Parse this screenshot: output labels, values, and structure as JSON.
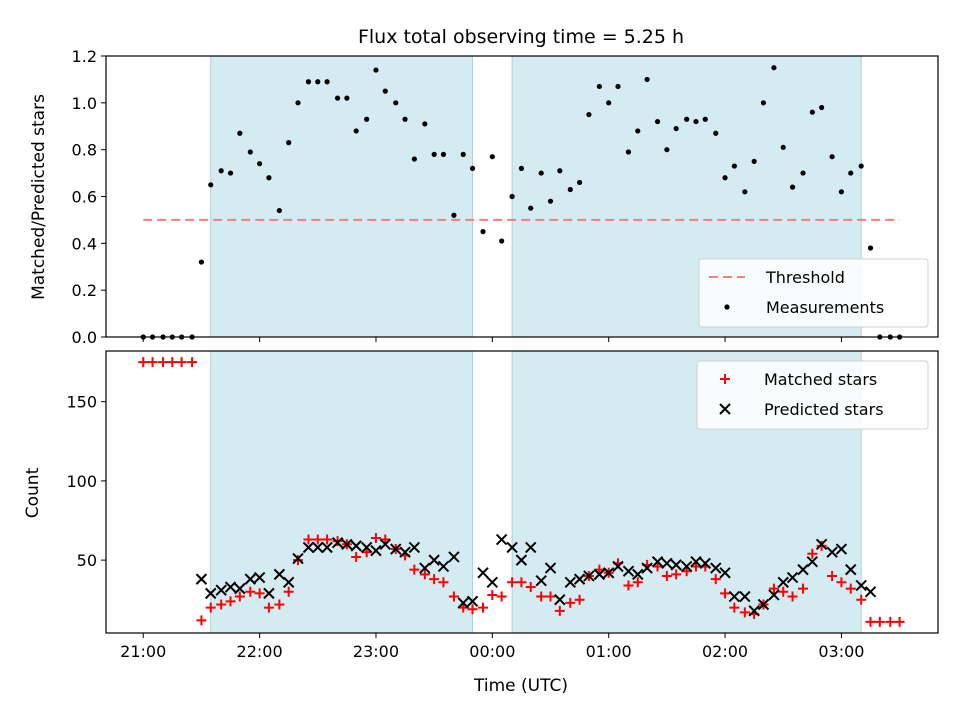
{
  "chart_data": [
    {
      "type": "scatter",
      "title": "Flux total observing time = 5.25 h",
      "xlabel": "",
      "ylabel": "Matched/Predicted stars",
      "xlim": [
        -0.32,
        6.83
      ],
      "ylim": [
        0.0,
        1.2
      ],
      "x_ticks": [
        "21:00",
        "22:00",
        "23:00",
        "00:00",
        "01:00",
        "02:00",
        "03:00"
      ],
      "y_ticks": [
        "0.0",
        "0.2",
        "0.4",
        "0.6",
        "0.8",
        "1.0",
        "1.2"
      ],
      "shaded_spans_hours_from_21": [
        [
          0.58,
          2.83
        ],
        [
          3.17,
          6.17
        ]
      ],
      "threshold": {
        "name": "Threshold",
        "value": 0.5,
        "x_range": [
          0.0,
          6.5
        ],
        "color": "#f08080"
      },
      "series": [
        {
          "name": "Measurements",
          "color": "#000000",
          "points": [
            [
              0.0,
              0.0
            ],
            [
              0.08,
              0.0
            ],
            [
              0.17,
              0.0
            ],
            [
              0.25,
              0.0
            ],
            [
              0.33,
              0.0
            ],
            [
              0.42,
              0.0
            ],
            [
              0.5,
              0.32
            ],
            [
              0.58,
              0.65
            ],
            [
              0.67,
              0.71
            ],
            [
              0.75,
              0.7
            ],
            [
              0.83,
              0.87
            ],
            [
              0.92,
              0.79
            ],
            [
              1.0,
              0.74
            ],
            [
              1.08,
              0.68
            ],
            [
              1.17,
              0.54
            ],
            [
              1.25,
              0.83
            ],
            [
              1.33,
              1.0
            ],
            [
              1.42,
              1.09
            ],
            [
              1.5,
              1.09
            ],
            [
              1.58,
              1.09
            ],
            [
              1.67,
              1.02
            ],
            [
              1.75,
              1.02
            ],
            [
              1.83,
              0.88
            ],
            [
              1.92,
              0.93
            ],
            [
              2.0,
              1.14
            ],
            [
              2.08,
              1.05
            ],
            [
              2.17,
              1.0
            ],
            [
              2.25,
              0.93
            ],
            [
              2.33,
              0.76
            ],
            [
              2.42,
              0.91
            ],
            [
              2.5,
              0.78
            ],
            [
              2.58,
              0.78
            ],
            [
              2.67,
              0.52
            ],
            [
              2.75,
              0.78
            ],
            [
              2.83,
              0.72
            ],
            [
              2.92,
              0.45
            ],
            [
              3.0,
              0.77
            ],
            [
              3.08,
              0.41
            ],
            [
              3.17,
              0.6
            ],
            [
              3.25,
              0.72
            ],
            [
              3.33,
              0.55
            ],
            [
              3.42,
              0.7
            ],
            [
              3.5,
              0.58
            ],
            [
              3.58,
              0.71
            ],
            [
              3.67,
              0.63
            ],
            [
              3.75,
              0.66
            ],
            [
              3.83,
              0.95
            ],
            [
              3.92,
              1.07
            ],
            [
              4.0,
              1.0
            ],
            [
              4.08,
              1.07
            ],
            [
              4.17,
              0.79
            ],
            [
              4.25,
              0.88
            ],
            [
              4.33,
              1.1
            ],
            [
              4.42,
              0.92
            ],
            [
              4.5,
              0.8
            ],
            [
              4.58,
              0.89
            ],
            [
              4.67,
              0.93
            ],
            [
              4.75,
              0.92
            ],
            [
              4.83,
              0.93
            ],
            [
              4.92,
              0.87
            ],
            [
              5.0,
              0.68
            ],
            [
              5.08,
              0.73
            ],
            [
              5.17,
              0.62
            ],
            [
              5.25,
              0.75
            ],
            [
              5.33,
              1.0
            ],
            [
              5.42,
              1.15
            ],
            [
              5.5,
              0.81
            ],
            [
              5.58,
              0.64
            ],
            [
              5.67,
              0.7
            ],
            [
              5.75,
              0.96
            ],
            [
              5.83,
              0.98
            ],
            [
              5.92,
              0.77
            ],
            [
              6.0,
              0.62
            ],
            [
              6.08,
              0.7
            ],
            [
              6.17,
              0.73
            ],
            [
              6.25,
              0.38
            ],
            [
              6.33,
              0.0
            ],
            [
              6.42,
              0.0
            ],
            [
              6.5,
              0.0
            ]
          ]
        }
      ],
      "legend_placement": "lower-right"
    },
    {
      "type": "scatter",
      "title": "",
      "xlabel": "Time (UTC)",
      "ylabel": "Count",
      "xlim": [
        -0.32,
        6.83
      ],
      "ylim": [
        4,
        182
      ],
      "x_ticks": [
        "21:00",
        "22:00",
        "23:00",
        "00:00",
        "01:00",
        "02:00",
        "03:00"
      ],
      "y_ticks": [
        "50",
        "100",
        "150"
      ],
      "shaded_spans_hours_from_21": [
        [
          0.58,
          2.83
        ],
        [
          3.17,
          6.17
        ]
      ],
      "series": [
        {
          "name": "Matched stars",
          "marker": "plus",
          "color": "#ff0000",
          "points": [
            [
              0.0,
              175
            ],
            [
              0.08,
              175
            ],
            [
              0.17,
              175
            ],
            [
              0.25,
              175
            ],
            [
              0.33,
              175
            ],
            [
              0.42,
              175
            ],
            [
              0.5,
              12
            ],
            [
              0.58,
              20
            ],
            [
              0.67,
              22
            ],
            [
              0.75,
              24
            ],
            [
              0.83,
              27
            ],
            [
              0.92,
              30
            ],
            [
              1.0,
              29
            ],
            [
              1.08,
              20
            ],
            [
              1.17,
              22
            ],
            [
              1.25,
              30
            ],
            [
              1.33,
              50
            ],
            [
              1.42,
              63
            ],
            [
              1.5,
              63
            ],
            [
              1.58,
              63
            ],
            [
              1.67,
              62
            ],
            [
              1.75,
              60
            ],
            [
              1.83,
              52
            ],
            [
              1.92,
              55
            ],
            [
              2.0,
              64
            ],
            [
              2.08,
              63
            ],
            [
              2.17,
              57
            ],
            [
              2.25,
              53
            ],
            [
              2.33,
              44
            ],
            [
              2.42,
              41
            ],
            [
              2.5,
              38
            ],
            [
              2.58,
              36
            ],
            [
              2.67,
              27
            ],
            [
              2.75,
              20
            ],
            [
              2.83,
              19
            ],
            [
              2.92,
              20
            ],
            [
              3.0,
              28
            ],
            [
              3.08,
              27
            ],
            [
              3.17,
              36
            ],
            [
              3.25,
              36
            ],
            [
              3.33,
              33
            ],
            [
              3.42,
              27
            ],
            [
              3.5,
              27
            ],
            [
              3.58,
              18
            ],
            [
              3.67,
              23
            ],
            [
              3.75,
              25
            ],
            [
              3.83,
              40
            ],
            [
              3.92,
              44
            ],
            [
              4.0,
              42
            ],
            [
              4.08,
              48
            ],
            [
              4.17,
              34
            ],
            [
              4.25,
              36
            ],
            [
              4.33,
              47
            ],
            [
              4.42,
              46
            ],
            [
              4.5,
              40
            ],
            [
              4.58,
              41
            ],
            [
              4.67,
              43
            ],
            [
              4.75,
              46
            ],
            [
              4.83,
              46
            ],
            [
              4.92,
              38
            ],
            [
              5.0,
              29
            ],
            [
              5.08,
              20
            ],
            [
              5.17,
              17
            ],
            [
              5.25,
              16
            ],
            [
              5.33,
              22
            ],
            [
              5.42,
              32
            ],
            [
              5.5,
              30
            ],
            [
              5.58,
              27
            ],
            [
              5.67,
              32
            ],
            [
              5.75,
              54
            ],
            [
              5.83,
              59
            ],
            [
              5.92,
              40
            ],
            [
              6.0,
              36
            ],
            [
              6.08,
              32
            ],
            [
              6.17,
              25
            ],
            [
              6.25,
              11
            ],
            [
              6.33,
              11
            ],
            [
              6.42,
              11
            ],
            [
              6.5,
              11
            ]
          ]
        },
        {
          "name": "Predicted stars",
          "marker": "x",
          "color": "#000000",
          "points": [
            [
              0.5,
              38
            ],
            [
              0.58,
              29
            ],
            [
              0.67,
              31
            ],
            [
              0.75,
              33
            ],
            [
              0.83,
              32
            ],
            [
              0.92,
              38
            ],
            [
              1.0,
              39
            ],
            [
              1.08,
              29
            ],
            [
              1.17,
              41
            ],
            [
              1.25,
              36
            ],
            [
              1.33,
              51
            ],
            [
              1.42,
              58
            ],
            [
              1.5,
              58
            ],
            [
              1.58,
              58
            ],
            [
              1.67,
              61
            ],
            [
              1.75,
              60
            ],
            [
              1.83,
              59
            ],
            [
              1.92,
              58
            ],
            [
              2.0,
              56
            ],
            [
              2.08,
              60
            ],
            [
              2.17,
              57
            ],
            [
              2.25,
              55
            ],
            [
              2.33,
              58
            ],
            [
              2.42,
              45
            ],
            [
              2.5,
              50
            ],
            [
              2.58,
              46
            ],
            [
              2.67,
              52
            ],
            [
              2.75,
              23
            ],
            [
              2.83,
              24
            ],
            [
              2.92,
              42
            ],
            [
              3.0,
              36
            ],
            [
              3.08,
              63
            ],
            [
              3.17,
              58
            ],
            [
              3.25,
              50
            ],
            [
              3.33,
              58
            ],
            [
              3.42,
              37
            ],
            [
              3.5,
              45
            ],
            [
              3.58,
              25
            ],
            [
              3.67,
              36
            ],
            [
              3.75,
              38
            ],
            [
              3.83,
              40
            ],
            [
              3.92,
              41
            ],
            [
              4.0,
              42
            ],
            [
              4.08,
              46
            ],
            [
              4.17,
              43
            ],
            [
              4.25,
              41
            ],
            [
              4.33,
              45
            ],
            [
              4.42,
              49
            ],
            [
              4.5,
              48
            ],
            [
              4.58,
              47
            ],
            [
              4.67,
              46
            ],
            [
              4.75,
              49
            ],
            [
              4.83,
              48
            ],
            [
              4.92,
              45
            ],
            [
              5.0,
              42
            ],
            [
              5.08,
              27
            ],
            [
              5.17,
              27
            ],
            [
              5.25,
              18
            ],
            [
              5.33,
              22
            ],
            [
              5.42,
              28
            ],
            [
              5.5,
              36
            ],
            [
              5.58,
              39
            ],
            [
              5.67,
              44
            ],
            [
              5.75,
              49
            ],
            [
              5.83,
              60
            ],
            [
              5.92,
              55
            ],
            [
              6.0,
              57
            ],
            [
              6.08,
              44
            ],
            [
              6.17,
              34
            ],
            [
              6.25,
              30
            ]
          ]
        }
      ],
      "legend_placement": "upper-right"
    }
  ],
  "colors": {
    "shade": "#d4ebf1",
    "shade_edge": "#a9d3de"
  }
}
